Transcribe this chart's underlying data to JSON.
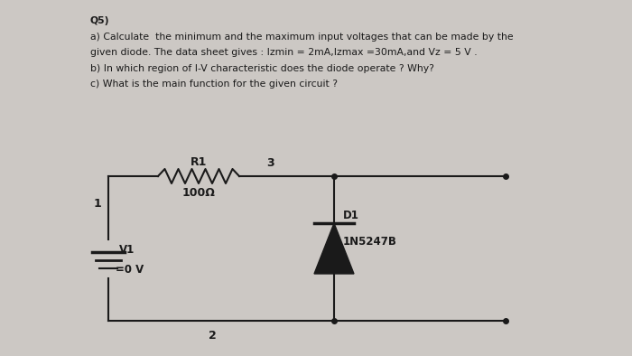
{
  "background_color": "#ccc8c4",
  "text_color": "#1a1a1a",
  "title_lines": [
    "Q5)",
    "a) Calculate  the minimum and the maximum input voltages that can be made by the",
    "given diode. The data sheet gives : Izmin = 2mA,Izmax =30mA,and Vz = 5 V .",
    "b) In which region of I-V characteristic does the diode operate ? Why?",
    "c) What is the main function for the given circuit ?"
  ],
  "circuit": {
    "node1_label": "1",
    "node2_label": "2",
    "node3_label": "3",
    "resistor_label": "R1",
    "resistor_value": "100Ω",
    "diode_label": "D1",
    "diode_part": "1N5247B",
    "voltage_label": "V1",
    "voltage_value": "=0 V"
  },
  "fig_width": 7.0,
  "fig_height": 3.94,
  "dpi": 100
}
